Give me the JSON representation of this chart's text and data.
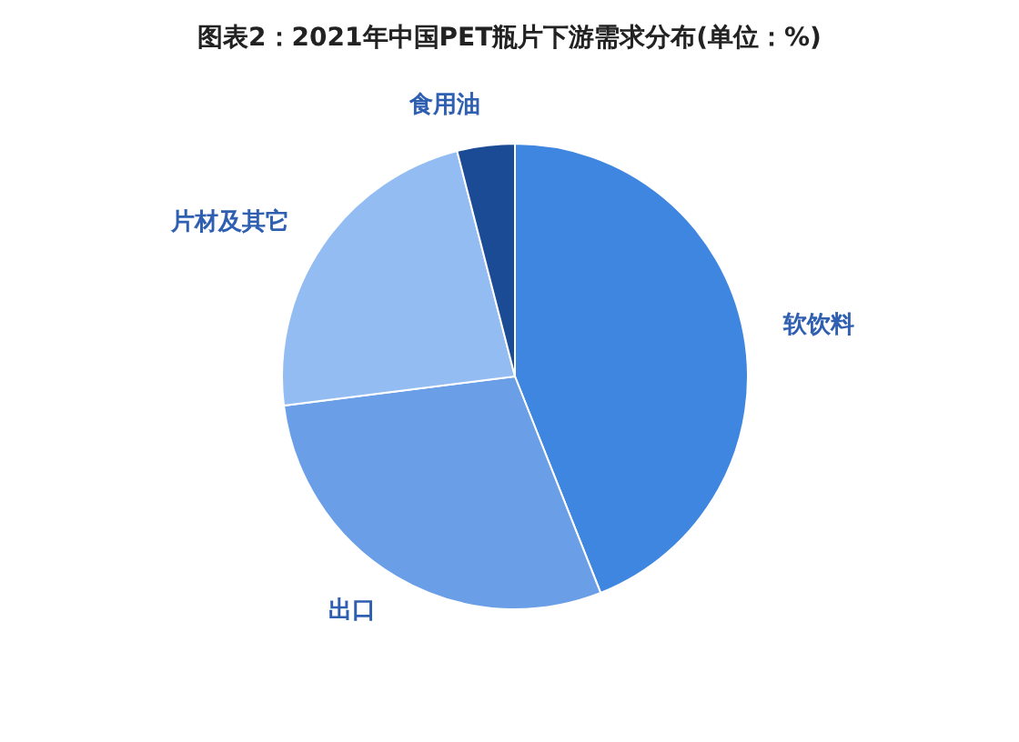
{
  "chart_data": {
    "type": "pie",
    "title": "图表2：2021年中国PET瓶片下游需求分布(单位：%)",
    "categories": [
      "软饮料",
      "出口",
      "片材及其它",
      "食用油"
    ],
    "values": [
      44,
      29,
      23,
      4
    ],
    "colors": [
      "#3f86e0",
      "#6a9fe8",
      "#93bdf2",
      "#1a4b94"
    ]
  }
}
